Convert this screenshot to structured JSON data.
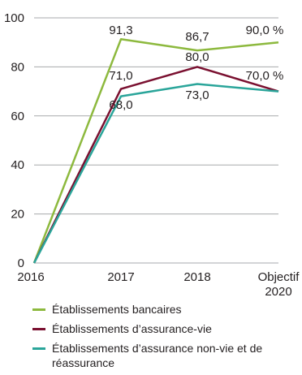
{
  "chart_data": {
    "type": "line",
    "categories": [
      "2016",
      "2017",
      "2018",
      "Objectif 2020"
    ],
    "category_lines": [
      [
        "2016"
      ],
      [
        "2017"
      ],
      [
        "2018"
      ],
      [
        "Objectif",
        "2020"
      ]
    ],
    "ylim": [
      0,
      100
    ],
    "yticks": [
      "0",
      "20",
      "40",
      "60",
      "80",
      "100"
    ],
    "grid": true,
    "series": [
      {
        "name": "Établissements bancaires",
        "color": "#8db93e",
        "values": [
          0,
          91.3,
          86.7,
          90.0
        ],
        "labels": [
          "",
          "91,3",
          "86,7",
          "90,0 %"
        ]
      },
      {
        "name": "Établissements d’assurance-vie",
        "color": "#7a1030",
        "values": [
          0,
          71.0,
          80.0,
          70.0
        ],
        "labels": [
          "",
          "71,0",
          "80,0",
          "70,0 %"
        ]
      },
      {
        "name": "Établissements d’assurance non-vie et de réassurance",
        "color": "#2aa59a",
        "values": [
          0,
          68.0,
          73.0,
          70.0
        ],
        "labels": [
          "",
          "68,0",
          "73,0",
          ""
        ]
      }
    ]
  },
  "legend": {
    "items": [
      {
        "label": "Établissements bancaires",
        "color": "#8db93e"
      },
      {
        "label": "Établissements d’assurance-vie",
        "color": "#7a1030"
      },
      {
        "label": "Établissements d’assurance non-vie et de réassurance",
        "color": "#2aa59a"
      }
    ]
  }
}
